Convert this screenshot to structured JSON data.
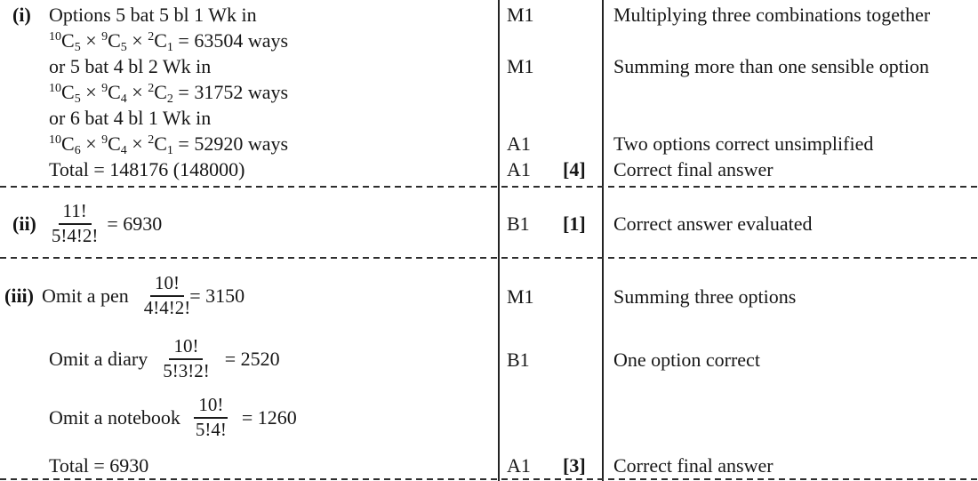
{
  "colors": {
    "ink": "#161616",
    "rule": "#232323"
  },
  "part_i": {
    "label": "(i)",
    "lines": [
      {
        "text": "Options 5 bat 5 bl 1 Wk in"
      },
      {
        "tokens": [
          {
            "t": "sup",
            "v": "10"
          },
          {
            "t": "txt",
            "v": "C"
          },
          {
            "t": "sub",
            "v": "5"
          },
          {
            "t": "txt",
            "v": " × "
          },
          {
            "t": "sup",
            "v": "9"
          },
          {
            "t": "txt",
            "v": "C"
          },
          {
            "t": "sub",
            "v": "5"
          },
          {
            "t": "txt",
            "v": " × "
          },
          {
            "t": "sup",
            "v": "2"
          },
          {
            "t": "txt",
            "v": "C"
          },
          {
            "t": "sub",
            "v": "1"
          },
          {
            "t": "txt",
            "v": " = 63504 ways"
          }
        ]
      },
      {
        "text": "or 5 bat 4 bl 2 Wk in"
      },
      {
        "tokens": [
          {
            "t": "sup",
            "v": "10"
          },
          {
            "t": "txt",
            "v": "C"
          },
          {
            "t": "sub",
            "v": "5"
          },
          {
            "t": "txt",
            "v": " × "
          },
          {
            "t": "sup",
            "v": "9"
          },
          {
            "t": "txt",
            "v": "C"
          },
          {
            "t": "sub",
            "v": "4"
          },
          {
            "t": "txt",
            "v": " × "
          },
          {
            "t": "sup",
            "v": "2"
          },
          {
            "t": "txt",
            "v": "C"
          },
          {
            "t": "sub",
            "v": "2"
          },
          {
            "t": "txt",
            "v": " = 31752 ways"
          }
        ]
      },
      {
        "text": "or 6 bat 4 bl 1 Wk in"
      },
      {
        "tokens": [
          {
            "t": "sup",
            "v": "10"
          },
          {
            "t": "txt",
            "v": "C"
          },
          {
            "t": "sub",
            "v": "6"
          },
          {
            "t": "txt",
            "v": " × "
          },
          {
            "t": "sup",
            "v": "9"
          },
          {
            "t": "txt",
            "v": "C"
          },
          {
            "t": "sub",
            "v": "4"
          },
          {
            "t": "txt",
            "v": " × "
          },
          {
            "t": "sup",
            "v": "2"
          },
          {
            "t": "txt",
            "v": "C"
          },
          {
            "t": "sub",
            "v": "1"
          },
          {
            "t": "txt",
            "v": " = 52920 ways"
          }
        ]
      },
      {
        "text": "Total = 148176 (148000)"
      }
    ],
    "marks": [
      {
        "code": "M1",
        "comment": "Multiplying three combinations together"
      },
      {
        "code": "M1",
        "comment": "Summing more than one sensible option"
      },
      {
        "code": "A1",
        "comment": "Two options correct unsimplified"
      },
      {
        "code": "A1",
        "bracket": "[4]",
        "comment": "Correct final answer"
      }
    ]
  },
  "part_ii": {
    "label": "(ii)",
    "fraction": {
      "num": "11!",
      "den": "5!4!2!"
    },
    "result": "= 6930",
    "mark": {
      "code": "B1",
      "bracket": "[1]",
      "comment": "Correct answer evaluated"
    }
  },
  "part_iii": {
    "label": "(iii)",
    "rows": [
      {
        "text": "Omit a pen",
        "fraction": {
          "num": "10!",
          "den": "4!4!2!"
        },
        "result": "= 3150",
        "mark": {
          "code": "M1",
          "comment": "Summing three options"
        }
      },
      {
        "text": "Omit a diary",
        "fraction": {
          "num": "10!",
          "den": "5!3!2!"
        },
        "result": "= 2520",
        "mark": {
          "code": "B1",
          "comment": "One option correct"
        }
      },
      {
        "text": "Omit a notebook",
        "fraction": {
          "num": "10!",
          "den": "5!4!"
        },
        "result": "= 1260"
      }
    ],
    "total_line": {
      "text": "Total = 6930",
      "mark": {
        "code": "A1",
        "bracket": "[3]",
        "comment": "Correct final answer"
      }
    }
  }
}
